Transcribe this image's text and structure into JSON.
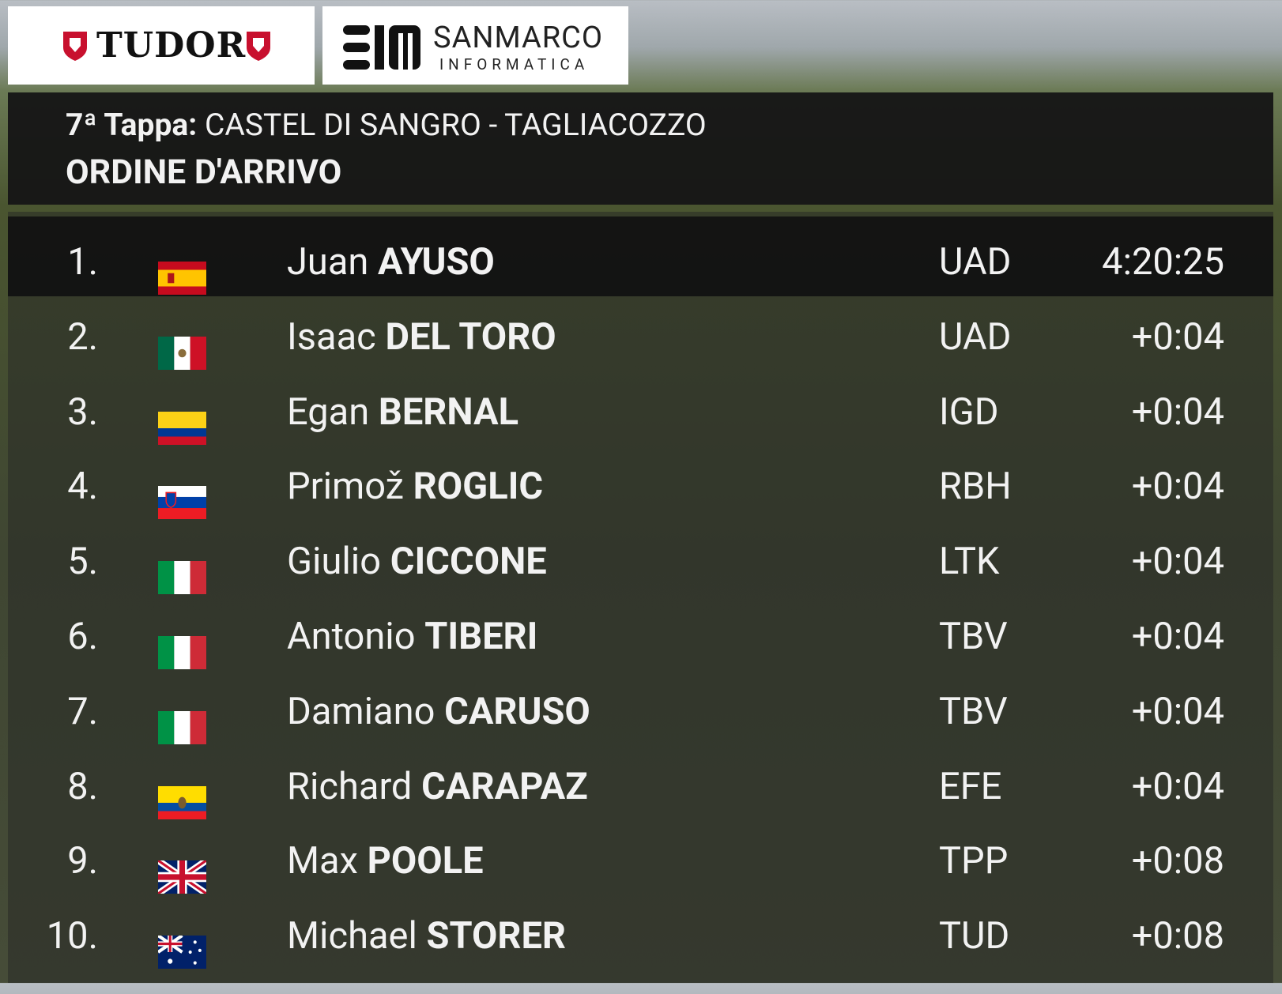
{
  "sponsors": {
    "tudor": "TUDOR",
    "sanmarco": "SANMARCO",
    "informatica": "INFORMATICA"
  },
  "header": {
    "stage": "7ª Tappa:",
    "route": "CASTEL DI SANGRO - TAGLIACOZZO",
    "subtitle": "ORDINE D'ARRIVO"
  },
  "rows": [
    {
      "rank": "1.",
      "first": "Juan",
      "last": "AYUSO",
      "team": "UAD",
      "time": "4:20:25"
    },
    {
      "rank": "2.",
      "first": "Isaac",
      "last": "DEL TORO",
      "team": "UAD",
      "time": "+0:04"
    },
    {
      "rank": "3.",
      "first": "Egan",
      "last": "BERNAL",
      "team": "IGD",
      "time": "+0:04"
    },
    {
      "rank": "4.",
      "first": "Primož",
      "last": "ROGLIC",
      "team": "RBH",
      "time": "+0:04"
    },
    {
      "rank": "5.",
      "first": "Giulio",
      "last": "CICCONE",
      "team": "LTK",
      "time": "+0:04"
    },
    {
      "rank": "6.",
      "first": "Antonio",
      "last": "TIBERI",
      "team": "TBV",
      "time": "+0:04"
    },
    {
      "rank": "7.",
      "first": "Damiano",
      "last": "CARUSO",
      "team": "TBV",
      "time": "+0:04"
    },
    {
      "rank": "8.",
      "first": "Richard",
      "last": "CARAPAZ",
      "team": "EFE",
      "time": "+0:04"
    },
    {
      "rank": "9.",
      "first": "Max",
      "last": "POOLE",
      "team": "TPP",
      "time": "+0:08"
    },
    {
      "rank": "10.",
      "first": "Michael",
      "last": "STORER",
      "team": "TUD",
      "time": "+0:08"
    }
  ]
}
